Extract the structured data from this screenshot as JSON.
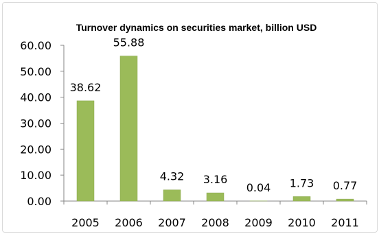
{
  "chart_data": {
    "type": "bar",
    "title": "Turnover dynamics on securities market, billion USD",
    "categories": [
      "2005",
      "2006",
      "2007",
      "2008",
      "2009",
      "2010",
      "2011"
    ],
    "values": [
      38.62,
      55.88,
      4.32,
      3.16,
      0.04,
      1.73,
      0.77
    ],
    "data_labels": [
      "38.62",
      "55.88",
      "4.32",
      "3.16",
      "0.04",
      "1.73",
      "0.77"
    ],
    "y_ticks": [
      "0.00",
      "10.00",
      "20.00",
      "30.00",
      "40.00",
      "50.00",
      "60.00"
    ],
    "ylim": [
      0,
      60
    ],
    "grid": false,
    "legend": "none",
    "bar_color": "#9bbb59",
    "bar_edge_color": "#8aa84e"
  }
}
